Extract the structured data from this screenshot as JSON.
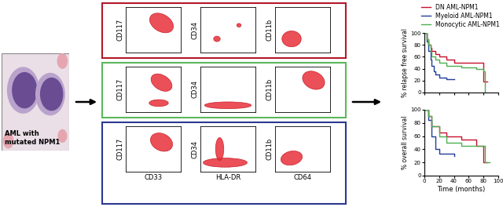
{
  "image": {
    "caption": [
      "AML with",
      "mutated NPM1"
    ]
  },
  "flow_cytometry": {
    "rows": [
      {
        "color": "#b2182b",
        "y_labels": [
          "CD117",
          "CD34",
          "CD11b"
        ]
      },
      {
        "color": "#5cb85c",
        "y_labels": [
          "CD117",
          "CD34",
          "CD11b"
        ]
      },
      {
        "color": "#2b3990",
        "y_labels": [
          "CD117",
          "CD34",
          "CD11b"
        ]
      }
    ],
    "x_labels": [
      "CD33",
      "HLA-DR",
      "CD64"
    ]
  },
  "chart_data": [
    {
      "type": "line",
      "y_label": "% relapse free survival",
      "legend": "upper right",
      "line_style": "steps",
      "xlim": [
        0,
        100
      ],
      "xticks": [
        0,
        20,
        40,
        60,
        80,
        100
      ],
      "ylim": [
        0,
        100
      ],
      "yticks": [
        0,
        20,
        40,
        60,
        80,
        100
      ],
      "tick_labels": "y",
      "series": [
        {
          "name": "DN AML-NPM1",
          "color": "#c8102e",
          "x": [
            0,
            3,
            5,
            8,
            10,
            15,
            20,
            30,
            40,
            75,
            80,
            85
          ],
          "values": [
            100,
            90,
            80,
            75,
            70,
            65,
            60,
            55,
            50,
            50,
            18,
            18
          ]
        },
        {
          "name": "Myeloid AML-NPM1",
          "color": "#1f3c99",
          "x": [
            0,
            3,
            5,
            8,
            10,
            13,
            15,
            20,
            30,
            40
          ],
          "values": [
            100,
            85,
            70,
            55,
            45,
            35,
            30,
            25,
            23,
            22
          ]
        },
        {
          "name": "Monocytic AML-NPM1",
          "color": "#4caf50",
          "x": [
            0,
            3,
            5,
            8,
            10,
            15,
            20,
            30,
            50,
            70,
            80,
            82
          ],
          "values": [
            100,
            90,
            80,
            68,
            60,
            55,
            50,
            45,
            42,
            40,
            35,
            0
          ]
        }
      ]
    },
    {
      "type": "line",
      "y_label": "% overall survival",
      "x_label": "Time (months)",
      "line_style": "steps",
      "xlim": [
        0,
        100
      ],
      "xticks": [
        0,
        20,
        40,
        60,
        80,
        100
      ],
      "ylim": [
        0,
        100
      ],
      "yticks": [
        0,
        20,
        40,
        60,
        80,
        100
      ],
      "series": [
        {
          "name": "DN AML-NPM1",
          "color": "#c8102e",
          "x": [
            0,
            5,
            10,
            20,
            30,
            50,
            70,
            80,
            85
          ],
          "values": [
            100,
            90,
            75,
            65,
            60,
            55,
            45,
            20,
            20
          ]
        },
        {
          "name": "Myeloid AML-NPM1",
          "color": "#1f3c99",
          "x": [
            0,
            5,
            10,
            15,
            20,
            40
          ],
          "values": [
            100,
            85,
            60,
            40,
            33,
            30
          ]
        },
        {
          "name": "Monocytic AML-NPM1",
          "color": "#4caf50",
          "x": [
            0,
            5,
            10,
            20,
            30,
            50,
            80,
            82,
            88
          ],
          "values": [
            100,
            90,
            75,
            60,
            50,
            45,
            45,
            20,
            20
          ]
        }
      ]
    }
  ]
}
